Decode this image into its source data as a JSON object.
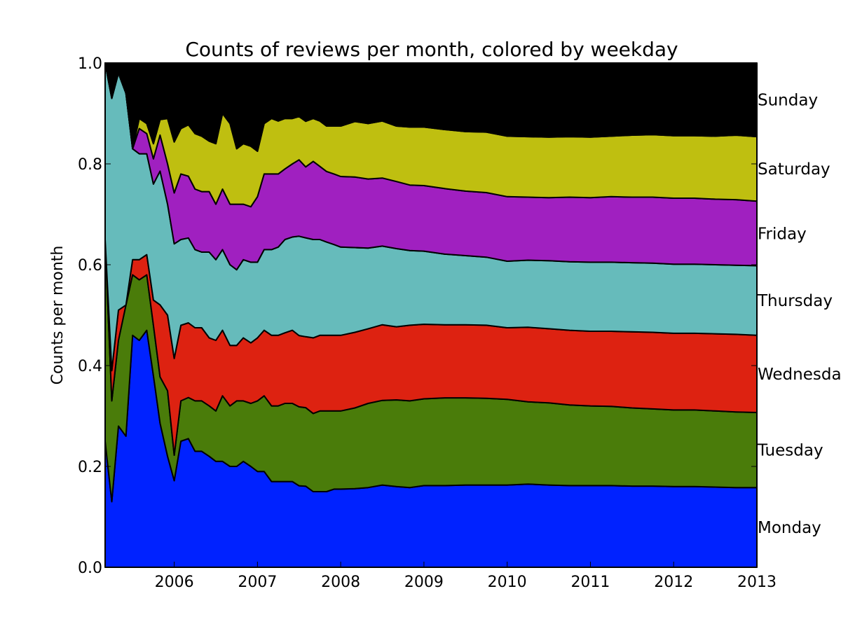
{
  "chart_data": {
    "type": "area",
    "stacked": true,
    "normalized": true,
    "title": "Counts of reviews per month, colored by weekday",
    "xlabel": "",
    "ylabel": "Counts per month",
    "xlim": [
      2005.17,
      2013.0
    ],
    "ylim": [
      0.0,
      1.0
    ],
    "grid": false,
    "legend": "series labels on right edge",
    "x_ticks": [
      2006,
      2007,
      2008,
      2009,
      2010,
      2011,
      2012,
      2013
    ],
    "x_tick_labels": [
      "2006",
      "2007",
      "2008",
      "2009",
      "2010",
      "2011",
      "2012",
      "2013"
    ],
    "y_ticks": [
      0.0,
      0.2,
      0.4,
      0.6,
      0.8,
      1.0
    ],
    "y_tick_labels": [
      "0.0",
      "0.2",
      "0.4",
      "0.6",
      "0.8",
      "1.0"
    ],
    "x": [
      2005.17,
      2005.25,
      2005.33,
      2005.42,
      2005.5,
      2005.58,
      2005.67,
      2005.75,
      2005.83,
      2005.92,
      2006.0,
      2006.08,
      2006.17,
      2006.25,
      2006.33,
      2006.42,
      2006.5,
      2006.58,
      2006.67,
      2006.75,
      2006.83,
      2006.92,
      2007.0,
      2007.08,
      2007.17,
      2007.25,
      2007.33,
      2007.42,
      2007.5,
      2007.58,
      2007.67,
      2007.75,
      2007.83,
      2007.92,
      2008.0,
      2008.17,
      2008.33,
      2008.5,
      2008.67,
      2008.83,
      2009.0,
      2009.25,
      2009.5,
      2009.75,
      2010.0,
      2010.25,
      2010.5,
      2010.75,
      2011.0,
      2011.25,
      2011.5,
      2011.75,
      2012.0,
      2012.25,
      2012.5,
      2012.75,
      2013.0
    ],
    "series": [
      {
        "name": "Monday",
        "color": "#0022ff",
        "values": [
          0.25,
          0.13,
          0.28,
          0.26,
          0.46,
          0.45,
          0.47,
          0.38,
          0.28,
          0.22,
          0.17,
          0.25,
          0.25,
          0.23,
          0.23,
          0.22,
          0.21,
          0.21,
          0.2,
          0.2,
          0.21,
          0.2,
          0.19,
          0.19,
          0.17,
          0.17,
          0.17,
          0.17,
          0.16,
          0.16,
          0.15,
          0.15,
          0.15,
          0.155,
          0.155,
          0.156,
          0.158,
          0.163,
          0.16,
          0.158,
          0.162,
          0.162,
          0.163,
          0.163,
          0.163,
          0.165,
          0.163,
          0.162,
          0.162,
          0.162,
          0.161,
          0.161,
          0.16,
          0.16,
          0.159,
          0.158,
          0.158
        ]
      },
      {
        "name": "Tuesday",
        "color": "#4a7c0a",
        "values": [
          0.4,
          0.2,
          0.17,
          0.26,
          0.12,
          0.12,
          0.11,
          0.1,
          0.09,
          0.13,
          0.05,
          0.08,
          0.08,
          0.1,
          0.1,
          0.1,
          0.1,
          0.13,
          0.12,
          0.13,
          0.12,
          0.125,
          0.14,
          0.15,
          0.15,
          0.15,
          0.155,
          0.155,
          0.155,
          0.155,
          0.155,
          0.16,
          0.16,
          0.155,
          0.155,
          0.16,
          0.167,
          0.168,
          0.172,
          0.172,
          0.172,
          0.174,
          0.173,
          0.172,
          0.17,
          0.163,
          0.163,
          0.16,
          0.158,
          0.157,
          0.155,
          0.153,
          0.152,
          0.152,
          0.151,
          0.15,
          0.149
        ]
      },
      {
        "name": "Wednesday",
        "color": "#dd2211",
        "values": [
          0.0,
          0.06,
          0.06,
          0.0,
          0.03,
          0.04,
          0.04,
          0.05,
          0.14,
          0.15,
          0.19,
          0.15,
          0.145,
          0.145,
          0.145,
          0.135,
          0.14,
          0.13,
          0.12,
          0.11,
          0.125,
          0.12,
          0.125,
          0.13,
          0.14,
          0.14,
          0.14,
          0.145,
          0.14,
          0.14,
          0.15,
          0.15,
          0.15,
          0.15,
          0.15,
          0.15,
          0.148,
          0.15,
          0.145,
          0.15,
          0.148,
          0.145,
          0.145,
          0.145,
          0.142,
          0.148,
          0.147,
          0.148,
          0.148,
          0.149,
          0.151,
          0.152,
          0.152,
          0.152,
          0.153,
          0.154,
          0.153
        ]
      },
      {
        "name": "Thursday",
        "color": "#66bbbb",
        "values": [
          0.35,
          0.54,
          0.47,
          0.42,
          0.22,
          0.21,
          0.2,
          0.23,
          0.26,
          0.22,
          0.225,
          0.17,
          0.165,
          0.155,
          0.15,
          0.17,
          0.16,
          0.16,
          0.16,
          0.15,
          0.155,
          0.16,
          0.15,
          0.16,
          0.17,
          0.175,
          0.185,
          0.185,
          0.195,
          0.195,
          0.195,
          0.19,
          0.185,
          0.18,
          0.175,
          0.168,
          0.16,
          0.156,
          0.155,
          0.148,
          0.145,
          0.14,
          0.137,
          0.135,
          0.132,
          0.133,
          0.135,
          0.136,
          0.137,
          0.137,
          0.137,
          0.137,
          0.137,
          0.137,
          0.137,
          0.137,
          0.138
        ]
      },
      {
        "name": "Friday",
        "color": "#a020c0",
        "values": [
          0.0,
          0.0,
          0.0,
          0.0,
          0.0,
          0.05,
          0.04,
          0.05,
          0.07,
          0.08,
          0.1,
          0.13,
          0.12,
          0.12,
          0.12,
          0.12,
          0.11,
          0.12,
          0.12,
          0.13,
          0.11,
          0.11,
          0.13,
          0.15,
          0.15,
          0.145,
          0.14,
          0.145,
          0.15,
          0.14,
          0.155,
          0.145,
          0.14,
          0.14,
          0.14,
          0.14,
          0.137,
          0.135,
          0.133,
          0.13,
          0.13,
          0.13,
          0.128,
          0.128,
          0.128,
          0.125,
          0.125,
          0.128,
          0.128,
          0.13,
          0.13,
          0.131,
          0.131,
          0.131,
          0.13,
          0.13,
          0.128
        ]
      },
      {
        "name": "Saturday",
        "color": "#bfbf10",
        "values": [
          0.0,
          0.0,
          0.0,
          0.0,
          0.0,
          0.02,
          0.02,
          0.03,
          0.03,
          0.09,
          0.1,
          0.09,
          0.1,
          0.11,
          0.11,
          0.1,
          0.12,
          0.15,
          0.16,
          0.11,
          0.12,
          0.12,
          0.09,
          0.1,
          0.11,
          0.105,
          0.1,
          0.09,
          0.085,
          0.09,
          0.085,
          0.09,
          0.09,
          0.095,
          0.1,
          0.11,
          0.11,
          0.113,
          0.11,
          0.115,
          0.116,
          0.117,
          0.118,
          0.12,
          0.12,
          0.12,
          0.12,
          0.12,
          0.12,
          0.12,
          0.123,
          0.124,
          0.124,
          0.124,
          0.125,
          0.128,
          0.128
        ]
      },
      {
        "name": "Sunday",
        "color": "#000000",
        "values": [
          0.0,
          0.07,
          0.02,
          0.06,
          0.17,
          0.11,
          0.12,
          0.16,
          0.11,
          0.11,
          0.155,
          0.13,
          0.12,
          0.14,
          0.145,
          0.155,
          0.16,
          0.1,
          0.12,
          0.17,
          0.16,
          0.165,
          0.175,
          0.12,
          0.11,
          0.115,
          0.11,
          0.11,
          0.105,
          0.115,
          0.11,
          0.115,
          0.125,
          0.125,
          0.125,
          0.116,
          0.12,
          0.115,
          0.125,
          0.127,
          0.127,
          0.132,
          0.136,
          0.137,
          0.145,
          0.146,
          0.147,
          0.146,
          0.147,
          0.145,
          0.143,
          0.142,
          0.144,
          0.144,
          0.145,
          0.143,
          0.146
        ]
      }
    ]
  }
}
